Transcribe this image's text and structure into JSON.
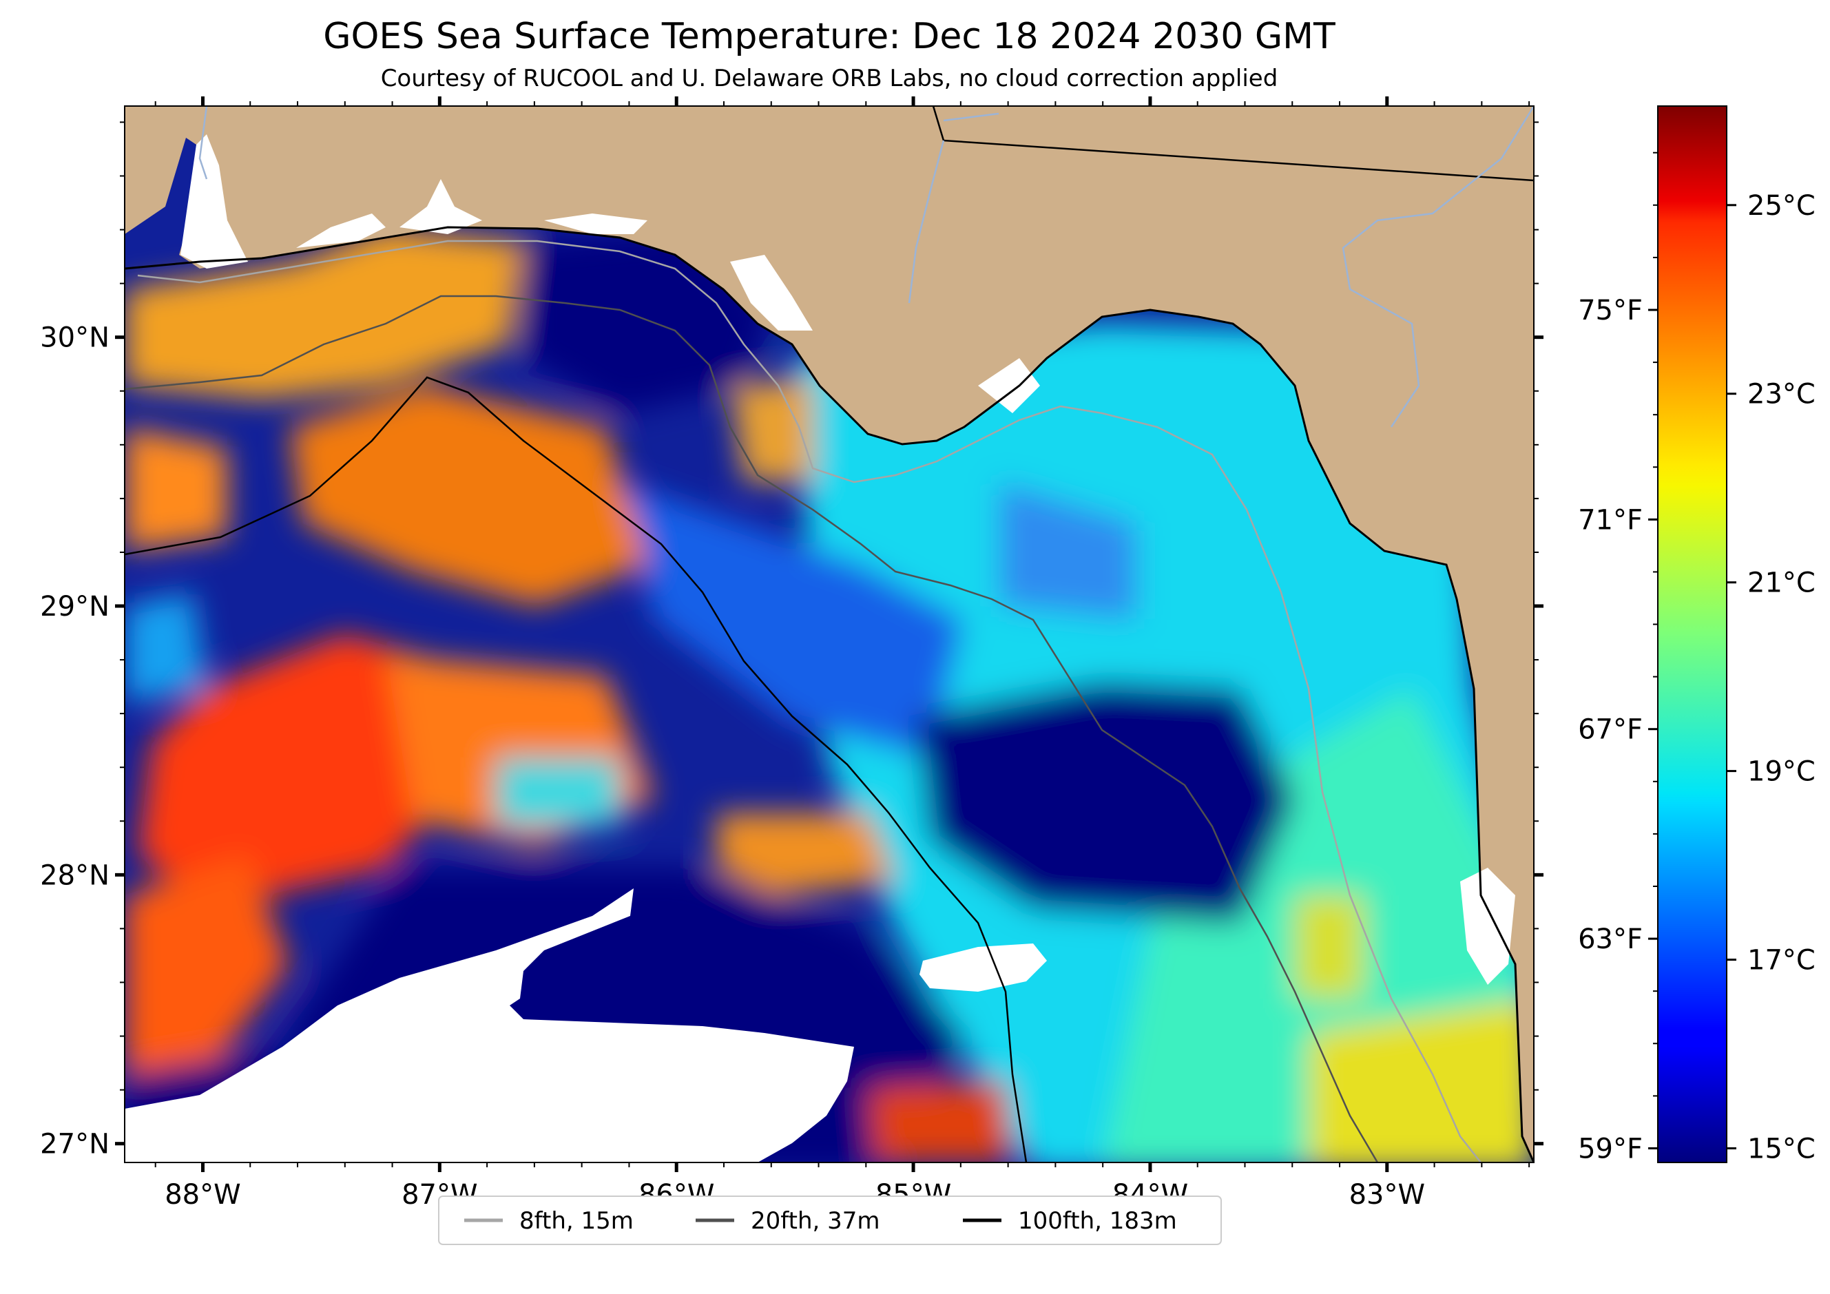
{
  "title": "GOES Sea Surface Temperature: Dec 18 2024 2030 GMT",
  "subtitle": "Courtesy of RUCOOL and U. Delaware ORB Labs, no cloud correction applied",
  "map": {
    "lon_range": [
      -88.33,
      -82.38
    ],
    "lat_range": [
      26.93,
      30.86
    ],
    "lon_ticks": [
      {
        "value": -88,
        "label": "88°W"
      },
      {
        "value": -87,
        "label": "87°W"
      },
      {
        "value": -86,
        "label": "86°W"
      },
      {
        "value": -85,
        "label": "85°W"
      },
      {
        "value": -84,
        "label": "84°W"
      },
      {
        "value": -83,
        "label": "83°W"
      }
    ],
    "lat_ticks": [
      {
        "value": 30,
        "label": "30°N"
      },
      {
        "value": 29,
        "label": "29°N"
      },
      {
        "value": 28,
        "label": "28°N"
      },
      {
        "value": 27,
        "label": "27°N"
      }
    ],
    "colors": {
      "land": "#cfb08a",
      "no_data": "#ffffff",
      "coast": "#000000",
      "river": "#9cb4d6"
    }
  },
  "legend": {
    "placement": "bottom-center",
    "entries": [
      {
        "label": "8fth, 15m",
        "color": "#a6a6a6"
      },
      {
        "label": "20fth, 37m",
        "color": "#505050"
      },
      {
        "label": "100fth, 183m",
        "color": "#000000"
      }
    ]
  },
  "colorbar": {
    "colormap": "jet",
    "min_c": 14.85,
    "max_c": 26.05,
    "celsius_ticks": [
      {
        "value": 15,
        "label": "15°C"
      },
      {
        "value": 17,
        "label": "17°C"
      },
      {
        "value": 19,
        "label": "19°C"
      },
      {
        "value": 21,
        "label": "21°C"
      },
      {
        "value": 23,
        "label": "23°C"
      },
      {
        "value": 25,
        "label": "25°C"
      }
    ],
    "fahrenheit_ticks": [
      {
        "value": 59,
        "label": "59°F"
      },
      {
        "value": 63,
        "label": "63°F"
      },
      {
        "value": 67,
        "label": "67°F"
      },
      {
        "value": 71,
        "label": "71°F"
      },
      {
        "value": 75,
        "label": "75°F"
      }
    ]
  }
}
